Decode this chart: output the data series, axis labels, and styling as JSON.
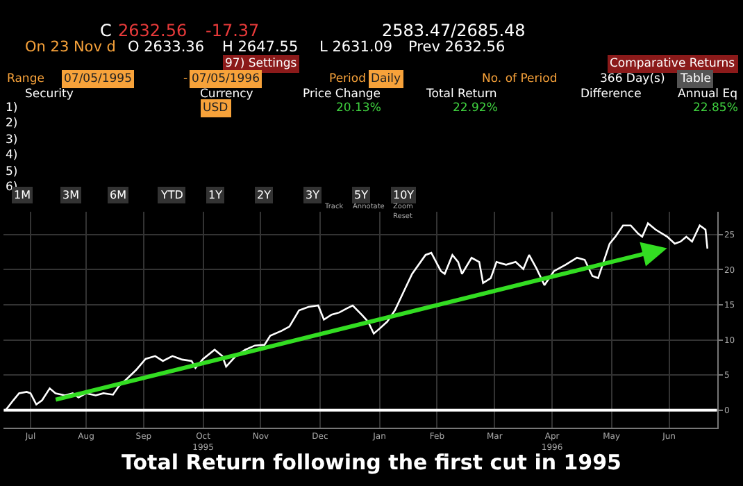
{
  "chart_data": {
    "type": "line",
    "title": "Total Return following the first cut in 1995",
    "x": [
      "1995-07-05",
      "1995-07-09",
      "1995-07-12",
      "1995-07-16",
      "1995-07-18",
      "1995-07-21",
      "1995-07-24",
      "1995-07-28",
      "1995-07-31",
      "1995-08-05",
      "1995-08-09",
      "1995-08-12",
      "1995-08-16",
      "1995-08-21",
      "1995-08-25",
      "1995-08-30",
      "1995-09-02",
      "1995-09-06",
      "1995-09-11",
      "1995-09-16",
      "1995-09-21",
      "1995-09-25",
      "1995-09-30",
      "1995-10-05",
      "1995-10-10",
      "1995-10-12",
      "1995-10-16",
      "1995-10-22",
      "1995-10-26",
      "1995-10-28",
      "1995-11-02",
      "1995-11-07",
      "1995-11-12",
      "1995-11-17",
      "1995-11-20",
      "1995-11-26",
      "1995-11-30",
      "1995-12-05",
      "1995-12-10",
      "1995-12-15",
      "1995-12-18",
      "1995-12-22",
      "1995-12-26",
      "1995-12-30",
      "1996-01-02",
      "1996-01-07",
      "1996-01-10",
      "1996-01-13",
      "1996-01-16",
      "1996-01-20",
      "1996-01-24",
      "1996-01-29",
      "1996-02-02",
      "1996-02-09",
      "1996-02-12",
      "1996-02-17",
      "1996-02-19",
      "1996-02-23",
      "1996-02-26",
      "1996-02-28",
      "1996-03-04",
      "1996-03-08",
      "1996-03-10",
      "1996-03-14",
      "1996-03-17",
      "1996-03-22",
      "1996-03-27",
      "1996-03-31",
      "1996-04-03",
      "1996-04-07",
      "1996-04-11",
      "1996-04-16",
      "1996-04-22",
      "1996-04-28",
      "1996-05-02",
      "1996-05-06",
      "1996-05-09",
      "1996-05-15",
      "1996-05-18",
      "1996-05-22",
      "1996-05-26",
      "1996-05-30",
      "1996-06-01",
      "1996-06-04",
      "1996-06-08",
      "1996-06-14",
      "1996-06-18",
      "1996-06-21",
      "1996-06-24",
      "1996-06-27",
      "1996-07-01",
      "1996-07-04",
      "1996-07-05"
    ],
    "series": [
      {
        "color": "#ffffff",
        "values": [
          0,
          1.4,
          2.4,
          2.6,
          2.4,
          0.8,
          1.4,
          3.1,
          2.4,
          2.1,
          2.4,
          1.8,
          2.4,
          2.1,
          2.4,
          2.2,
          3.4,
          4.4,
          5.7,
          7.3,
          7.7,
          7.0,
          7.7,
          7.2,
          7.0,
          6.0,
          7.3,
          8.6,
          7.7,
          6.2,
          7.7,
          8.6,
          9.2,
          9.3,
          10.6,
          11.3,
          11.9,
          14.2,
          14.7,
          14.9,
          12.9,
          13.6,
          13.9,
          14.5,
          14.9,
          13.5,
          12.6,
          10.9,
          11.6,
          12.6,
          14.2,
          17.1,
          19.4,
          22.1,
          22.4,
          19.8,
          19.4,
          22.1,
          21.1,
          19.4,
          21.7,
          21.1,
          18.1,
          18.8,
          21.1,
          20.7,
          21.1,
          20.1,
          22.1,
          20.1,
          17.8,
          19.8,
          20.7,
          21.7,
          21.4,
          19.1,
          18.8,
          23.7,
          24.7,
          26.3,
          26.3,
          25.1,
          24.7,
          26.6,
          25.7,
          24.7,
          23.7,
          24.0,
          24.7,
          24.0,
          26.3,
          25.7,
          23.0
        ]
      }
    ],
    "xlim": [
      "1995-07-04",
      "1996-07-10"
    ],
    "xticks": [
      {
        "value": "1995-07-18",
        "label": "Jul"
      },
      {
        "value": "1995-08-16",
        "label": "Aug"
      },
      {
        "value": "1995-09-15",
        "label": "Sep"
      },
      {
        "value": "1995-10-16",
        "label": "Oct\n1995"
      },
      {
        "value": "1995-11-15",
        "label": "Nov"
      },
      {
        "value": "1995-12-16",
        "label": "Dec"
      },
      {
        "value": "1996-01-16",
        "label": "Jan"
      },
      {
        "value": "1996-02-15",
        "label": "Feb"
      },
      {
        "value": "1996-03-16",
        "label": "Mar"
      },
      {
        "value": "1996-04-15",
        "label": "Apr\n1996"
      },
      {
        "value": "1996-05-16",
        "label": "May"
      },
      {
        "value": "1996-06-15",
        "label": "Jun"
      }
    ],
    "ylim": [
      -2.5,
      28.3
    ],
    "yticks": [
      0,
      5,
      10,
      15,
      20,
      25
    ],
    "grid": true,
    "ref_lines": [
      {
        "axis": "y",
        "value": 0,
        "color": "#ffffff"
      }
    ],
    "annotations": [
      "C",
      "2632.56",
      "-17.37",
      "2583.47/2685.48",
      "On 23 Nov d",
      "O 2633.36",
      "H 2647.55",
      "L 2631.09",
      "Prev 2632.56",
      "97) Settings",
      "Comparative Returns",
      "Range",
      "07/05/1995",
      "-",
      "07/05/1996",
      "Period",
      "Daily",
      "No. of Period",
      "366 Day(s)",
      "Table",
      "Security",
      "Currency",
      "Price Change",
      "Total Return",
      "Difference",
      "Annual Eq",
      "1)",
      "2)",
      "3)",
      "4)",
      "5)",
      "6)",
      "USD",
      "20.13%",
      "22.92%",
      "22.85%",
      "1M",
      "3M",
      "6M",
      "YTD",
      "1Y",
      "2Y",
      "3Y",
      "5Y",
      "10Y",
      "Track",
      "Annotate",
      "Zoom",
      "Reset"
    ]
  }
}
